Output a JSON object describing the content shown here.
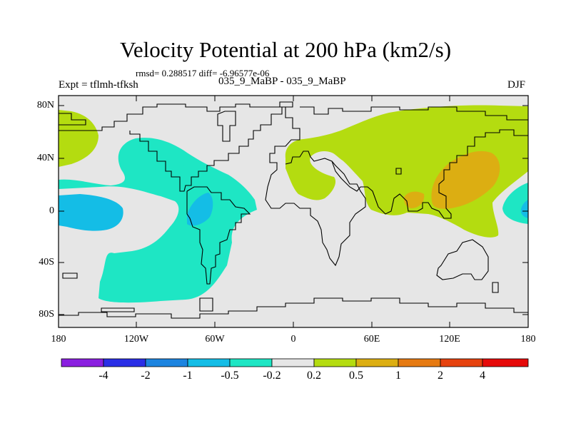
{
  "title": "Velocity Potential at 200 hPa (km2/s)",
  "stats_line": "rmsd= 0.288517  diff= -6.96577e-06",
  "left_label": "Expt = tflmh-tfksh",
  "center_label": "035_9_MaBP - 035_9_MaBP",
  "right_label": "DJF",
  "lat_ticks": [
    "80N",
    "40N",
    "0",
    "40S",
    "80S"
  ],
  "lon_ticks": [
    "180",
    "120W",
    "60W",
    "0",
    "60E",
    "120E",
    "180"
  ],
  "colorbar": {
    "labels": [
      "-4",
      "-2",
      "-1",
      "-0.5",
      "-0.2",
      "0.2",
      "0.5",
      "1",
      "2",
      "4"
    ],
    "colors": [
      "#8a1fe0",
      "#2a2ee6",
      "#1c84e0",
      "#14bde6",
      "#1ee6c4",
      "#e6e6e6",
      "#b4dc10",
      "#dcae12",
      "#e67a12",
      "#e6420e",
      "#e60a0a"
    ]
  },
  "colors": {
    "background": "#e6e6e6",
    "negative_weak": "#1ee6c4",
    "negative_moderate": "#14bde6",
    "positive_weak": "#b4dc10",
    "positive_moderate": "#dcae12"
  }
}
